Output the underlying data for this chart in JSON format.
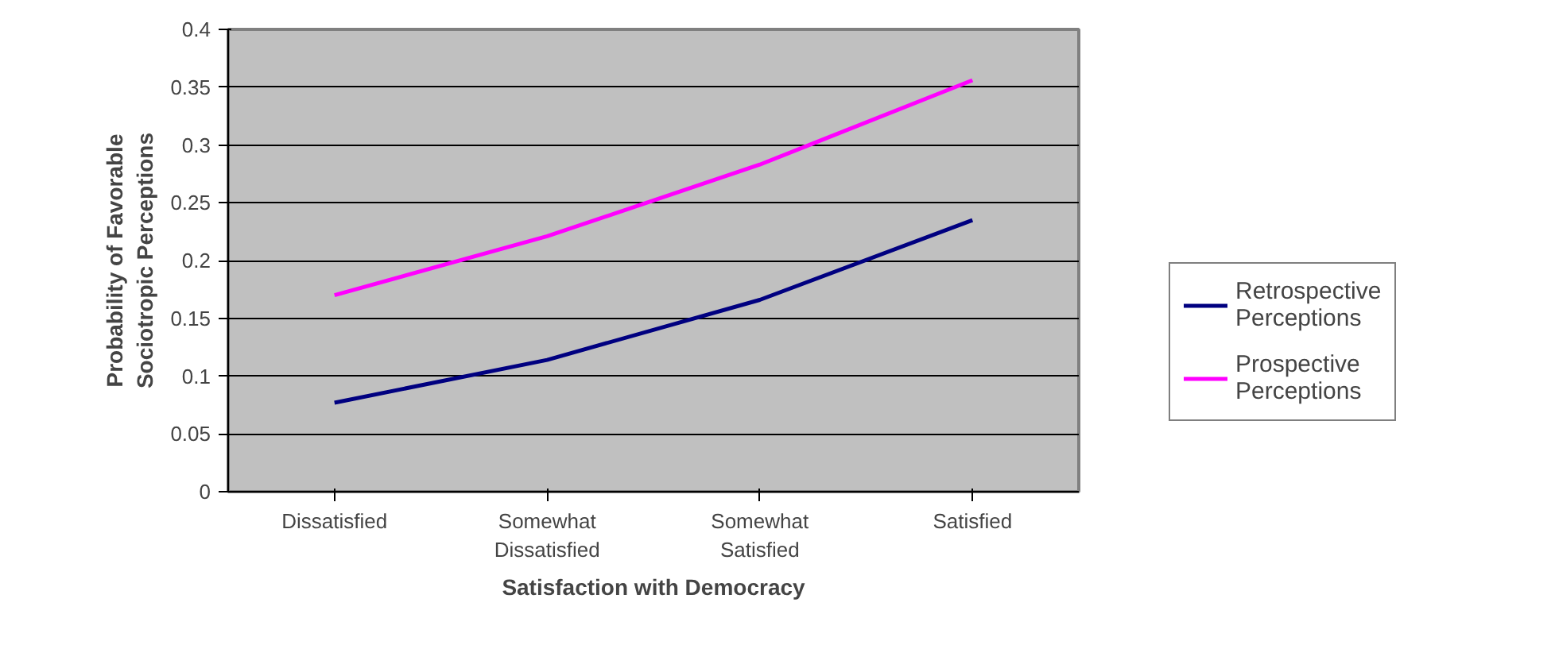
{
  "chart_data": {
    "type": "line",
    "xlabel": "Satisfaction with Democracy",
    "ylabel": "Probability of Favorable Sociotropic Perceptions",
    "categories": [
      "Dissatisfied",
      "Somewhat Dissatisfied",
      "Somewhat Satisfied",
      "Satisfied"
    ],
    "series": [
      {
        "name": "Retrospective Perceptions",
        "color": "#000080",
        "values": [
          0.077,
          0.114,
          0.166,
          0.235
        ]
      },
      {
        "name": "Prospective Perceptions",
        "color": "#ff00ff",
        "values": [
          0.17,
          0.221,
          0.283,
          0.356
        ]
      }
    ],
    "ylim": [
      0,
      0.4
    ],
    "yticks": [
      0,
      0.05,
      0.1,
      0.15,
      0.2,
      0.25,
      0.3,
      0.35,
      0.4
    ],
    "grid": "y",
    "legend": "right",
    "marker": "none",
    "line_style": "solid"
  }
}
